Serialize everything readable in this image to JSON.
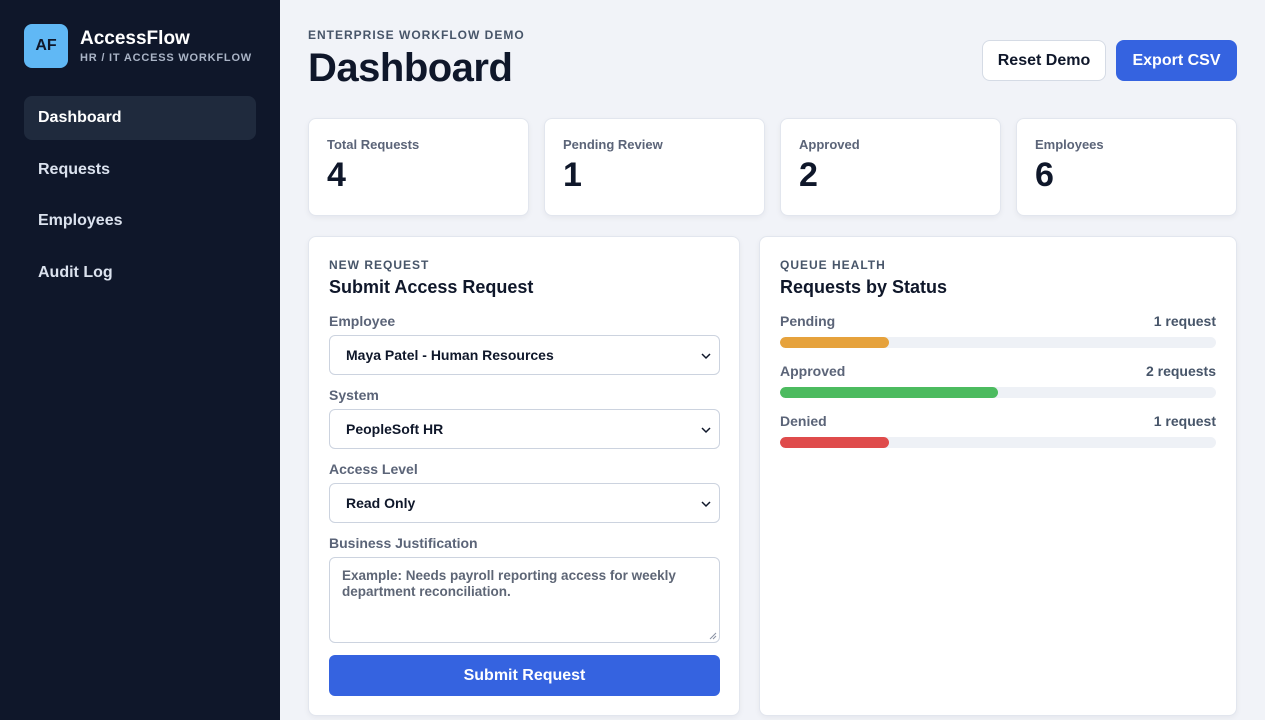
{
  "brand": {
    "logo": "AF",
    "name": "AccessFlow",
    "subtitle": "HR / IT ACCESS WORKFLOW"
  },
  "nav": [
    {
      "label": "Dashboard",
      "active": true
    },
    {
      "label": "Requests",
      "active": false
    },
    {
      "label": "Employees",
      "active": false
    },
    {
      "label": "Audit Log",
      "active": false
    }
  ],
  "header": {
    "eyebrow": "ENTERPRISE WORKFLOW DEMO",
    "title": "Dashboard",
    "reset_label": "Reset Demo",
    "export_label": "Export CSV"
  },
  "stats": [
    {
      "label": "Total Requests",
      "value": "4"
    },
    {
      "label": "Pending Review",
      "value": "1"
    },
    {
      "label": "Approved",
      "value": "2"
    },
    {
      "label": "Employees",
      "value": "6"
    }
  ],
  "request_form": {
    "eyebrow": "NEW REQUEST",
    "title": "Submit Access Request",
    "employee_label": "Employee",
    "employee_value": "Maya Patel - Human Resources",
    "system_label": "System",
    "system_value": "PeopleSoft HR",
    "access_label": "Access Level",
    "access_value": "Read Only",
    "justification_label": "Business Justification",
    "justification_placeholder": "Example: Needs payroll reporting access for weekly department reconciliation.",
    "submit_label": "Submit Request"
  },
  "queue": {
    "eyebrow": "QUEUE HEALTH",
    "title": "Requests by Status",
    "statuses": [
      {
        "label": "Pending",
        "count_text": "1 request",
        "fraction": 0.25,
        "color": "#e6a23c"
      },
      {
        "label": "Approved",
        "count_text": "2 requests",
        "fraction": 0.5,
        "color": "#4cbb5f"
      },
      {
        "label": "Denied",
        "count_text": "1 request",
        "fraction": 0.25,
        "color": "#df4b4b"
      }
    ]
  },
  "colors": {
    "sidebar": "#0f172a",
    "accent": "#3563e0",
    "logo": "#60b8f5"
  },
  "icons": {
    "select_indicator": "chevron-down-icon"
  }
}
